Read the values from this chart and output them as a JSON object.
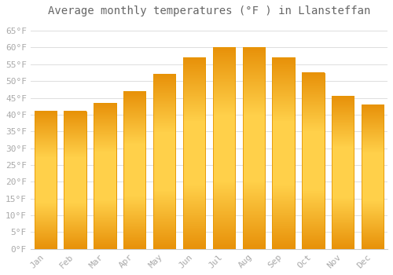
{
  "title": "Average monthly temperatures (°F ) in Llansteffan",
  "months": [
    "Jan",
    "Feb",
    "Mar",
    "Apr",
    "May",
    "Jun",
    "Jul",
    "Aug",
    "Sep",
    "Oct",
    "Nov",
    "Dec"
  ],
  "values": [
    41,
    41,
    43.5,
    47,
    52,
    57,
    60,
    60,
    57,
    52.5,
    45.5,
    43
  ],
  "bar_color_light": "#FFB300",
  "bar_color_mid": "#FFCA28",
  "bar_edge_color": "#E69500",
  "background_color": "#FFFFFF",
  "grid_color": "#DDDDDD",
  "ylim": [
    0,
    68
  ],
  "yticks": [
    0,
    5,
    10,
    15,
    20,
    25,
    30,
    35,
    40,
    45,
    50,
    55,
    60,
    65
  ],
  "title_fontsize": 10,
  "tick_fontsize": 8,
  "tick_label_color": "#AAAAAA",
  "title_color": "#666666"
}
